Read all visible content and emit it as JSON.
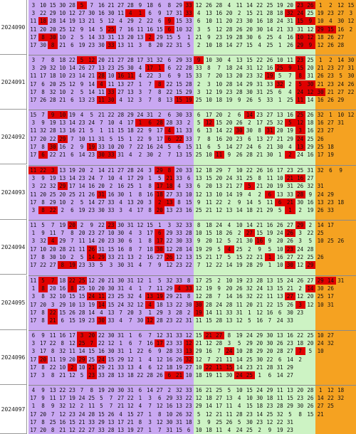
{
  "colors": {
    "purple": "#c9a8f2",
    "green": "#cdf3c4",
    "orange": "#f5a221",
    "hit": "#e00000"
  },
  "groups": [
    {
      "label": "2024090",
      "rows": [
        "3 10 15 30 28 5 7 16 21 27 28 9 18 6 8 29 33 12 26 28 4 11 14 22 25 19 20 23 26 1 2 12 15",
        "3 22 29 10 12 27 30 16 30 11 4 1 6 9 17 31 33 4 13 16 20 2 15 21 28 18 32 24 25 19 23 27 3",
        "11 18 28 14 19 13 21 5 12 4 29 2 22 6 9 15 33 6 10 11 20 23 30 16 18 24 31 15 9 10 4 30 12",
        "11 20 20 25 12 9 14 5 25 7 16 11 16 15 6 10 32 3 5 12 28 26 20 30 14 21 33 31 12 29 15 16 2",
        "17 8 30 10 2 5 14 33 31 13 20 13 2 29 15 5 1 21 9 23 19 28 30 6 25 4 16 10 12 18 26 27",
        "17 30 8 21 6 19 23 30 33 13 11 3 8 20 22 31 5 2 10 18 14 27 15 4 25 1 26 29 9 12 26 28"
      ],
      "hits": [
        [
          5,
          16,
          27,
          28
        ],
        [
          10,
          11,
          16,
          26,
          27
        ],
        [
          1,
          14,
          27,
          28
        ],
        [
          8,
          14,
          29,
          30
        ],
        [
          1,
          2,
          12,
          27,
          28
        ],
        [
          2,
          8,
          27,
          28
        ]
      ]
    },
    {
      "label": "2024091",
      "rows": [
        "3 7 8 18 22 5 12 20 21 27 28 17 31 32 6 29 33 9 10 30 4 13 15 22 26 10 11 23 25 1 2 14 30",
        "3 29 32 10 14 26 27 13 23 25 30 4 17 1 6 22 28 33 8 7 18 24 31 12 16 25 9 15 20 21 23 27 31",
        "11 17 18 10 23 14 21 28 10 16 11 4 22 3 6 9 15 33 7 20 13 20 23 32 19 5 7 8 31 26 23 5 30",
        "17 6 20 25 12 9 14 4 11 13 27 1 7 8 22 15 28 2 3 10 28 14 29 31 33 32 2 5 30 21 23 24 26",
        "17 8 32 10 2 5 14 11 33 27 13 3 7 8 22 15 29 3 12 19 23 28 30 31 25 6 4 24 12 30 21 27 22",
        "17 26 28 21 6 13 23 11 30 4 12 3 7 8 13 15 19 25 10 18 19 9 26 5 33 1 25 11 14 16 26 29"
      ],
      "hits": [
        [
          5,
          6,
          17,
          27
        ],
        [
          12,
          13,
          25,
          26,
          27
        ],
        [
          7,
          9,
          10,
          24,
          27
        ],
        [
          7,
          13,
          25,
          27,
          28
        ],
        [
          8,
          27,
          28,
          29
        ],
        [
          7,
          8,
          15,
          16,
          27
        ]
      ]
    },
    {
      "label": "2024092",
      "rows": [
        "15 7 9 10 19 4 5 21 22 28 29 24 31 2 6 30 33 6 17 20 2 6 14 23 27 13 16 25 26 32 1 10 12",
        "3 9 19 13 14 23 24 7 10 4 17 1 6 28 28 33 2 5 12 15 20 26 2 17 25 32 5 12 18 16 27 31",
        "11 32 28 13 16 21 5 1 11 15 18 22 9 17 4 11 33 6 13 14 22 30 30 8 31 20 19 3 16 23 27",
        "17 20 22 29 7 10 11 31 5 15 1 22 9 17 6 22 33 7 8 16 20 23 6 13 27 21 29 24 25 26",
        "17 8 30 16 2 9 19 33 10 20 7 22 16 24 5 6 15 11 6 5 14 27 24 6 21 30 4 13 29 25 18",
        "17 6 22 21 6 14 23 30 33 31 4 2 30 2 7 13 15 25 10 11 9 26 28 21 30 1 2 24 16 17 19"
      ],
      "hits": [
        [
          2,
          3,
          22,
          27
        ],
        [
          11,
          12,
          13,
          18,
          26,
          27
        ],
        [
          14,
          21,
          24,
          27
        ],
        [
          3,
          14,
          15,
          27
        ],
        [
          2,
          6,
          27
        ],
        [
          1,
          7,
          8,
          19,
          26
        ]
      ]
    },
    {
      "label": "2024093",
      "rows": [
        "11 22 3 13 19 20 2 14 21 27 28 24 3 29 8 20 33 12 18 29 7 10 22 26 16 17 23 25 31 32 6 9",
        "3 9 19 13 14 23 24 7 10 4 17 29 1 5 21 33 6 13 15 20 24 31 25 8 11 10 21 16 27",
        "3 22 32 29 17 14 16 20 2 16 25 1 8 17 18 4 33 6 20 13 21 27 5 21 20 19 31 26 32 31",
        "11 20 25 20 25 21 26 31 16 30 1 8 16 18 27 33 10 12 13 10 14 19 4 2 6 13 33 28 9 24 29",
        "17 8 29 10 2 5 14 27 33 4 13 20 3 2 13 8 15 9 11 22 2 9 14 5 11 6 21 30 16 13 23 18",
        "3 8 22 2 6 19 23 30 33 3 4 17 8 20 13 23 16 25 21 12 13 14 18 21 29 5 1 2 19 26 33"
      ],
      "hits": [
        [
          0,
          1,
          2,
          13,
          14
        ],
        [
          14,
          26,
          27
        ],
        [
          3,
          13,
          14,
          22
        ],
        [
          7,
          13,
          24,
          27
        ],
        [
          13,
          14,
          25,
          26
        ],
        [
          1,
          2,
          13,
          26
        ]
      ]
    },
    {
      "label": "2024094",
      "rows": [
        "11 5 7 19 20 2 9 22 23 30 31 12 15 1 3 32 33 8 18 24 4 10 14 21 16 26 27 29 2 14 17",
        "1 9 11 7 8 20 23 27 10 30 4 3 17 6 29 33 28 10 15 18 26 2 27 15 19 24 26 3 22 25",
        "3 32 4 29 7 11 14 20 23 30 6 1 8 17 22 30 33 9 20 12 5 21 30 16 9 20 26 3 5 10 25 26",
        "17 10 20 28 21 11 26 31 15 16 8 7 18 30 12 28 14 19 29 5 4 25 2 9 5 10 23 24 28",
        "17 8 30 10 2 5 14 29 33 21 13 2 16 27 26 12 13 15 21 17 5 15 22 21 1 16 27 22 25 26",
        "17 22 27 8 19 23 33 5 3 30 31 4 7 9 12 23 22 7 12 22 14 19 28 29 1 10 30 12 29"
      ],
      "hits": [
        [
          4,
          8,
          27
        ],
        [
          13,
          22,
          26
        ],
        [
          2,
          13,
          23
        ],
        [
          6,
          13,
          20,
          26
        ],
        [
          6,
          7,
          14,
          24
        ],
        [
          3,
          4,
          26,
          28
        ]
      ]
    },
    {
      "label": "2024095",
      "rows": [
        "11 5 7 18 22 25 12 20 21 30 31 12 1 5 32 33 8 17 25 2 10 19 23 28 13 15 24 26 27 29 14 31",
        "1 8 20 16 8 25 10 20 30 31 4 1 7 11 29 4 33 12 19 9 20 26 32 24 13 15 21 2 14 30 26",
        "3 8 32 10 15 15 24 11 23 25 32 4 13 19 29 21 8 12 28 7 14 16 32 22 11 13 27 12 20 25 17",
        "17 20 3 29 10 13 19 14 15 24 32 12 4 18 13 22 30 30 28 24 28 11 20 21 22 15 26 3 12 10 31",
        "17 8 22 15 26 28 14 4 13 7 20 3 1 29 3 28 2 19 14 11 33 31 1 12 16 6 30 23",
        "17 8 21 6 15 19 23 30 33 4 7 30 12 28 23 22 31 11 15 28 13 12 5 16 7 24 33"
      ],
      "hits": [
        [
          1,
          2,
          4,
          5,
          29,
          30
        ],
        [
          1,
          4,
          15,
          16,
          28
        ],
        [
          6,
          7,
          12,
          13,
          26
        ],
        [
          7,
          12,
          17,
          27
        ],
        [
          2,
          17,
          28
        ],
        [
          2,
          7,
          12,
          29
        ]
      ]
    },
    {
      "label": "2024096",
      "rows": [
        "6 9 11 16 17 3 20 22 30 31 1 6 7 12 31 33 12 15 21 27 8 19 24 29 30 13 16 22 25 10 27",
        "3 17 22 8 12 25 7 22 12 1 6 7 16 17 23 33 12 21 12 28 3 5 29 20 30 26 23 18 20 24 32",
        "3 17 8 32 11 14 15 16 30 31 1 22 6 9 28 33 13 29 16 7 24 10 28 29 20 28 27 7 5 10",
        "17 20 11 19 20 29 25 24 15 29 12 1 4 12 16 26 32 12 7 21 11 14 25 30 22 6 14 2",
        "17 8 22 10 2 10 21 29 21 33 13 4 6 12 18 19 27 10 22 11 15 14 23 21 28 31 29",
        "17 3 8 21 12 5 23 33 28 13 18 22 28 26 6 21 10 18 19 11 30 24 25 1 6 14 27"
      ],
      "hits": [
        [
          5,
          6,
          18,
          19
        ],
        [
          5,
          6,
          13,
          16
        ],
        [
          16,
          20,
          27
        ],
        [
          1,
          5,
          7,
          16
        ],
        [
          4,
          6,
          18,
          19,
          20
        ],
        [
          6,
          14,
          15,
          21,
          22
        ]
      ]
    },
    {
      "label": "2024097",
      "rows": [
        "4 9 13 22 23 7 8 19 20 30 31 6 14 27 2 32 33 16 21 25 5 10 15 24 29 11 13 20 28 1 12 18",
        "17 9 11 17 19 24 25 5 7 27 22 1 3 6 29 33 22 12 18 27 13 4 10 30 18 11 15 23 26 14 22 32",
        "1 8 9 32 12 2 11 5 7 21 12 4 7 12 16 13 23 29 14 17 11 4 15 18 23 28 29 30 26 27 25",
        "17 20 7 12 23 24 28 15 26 4 15 27 1 8 10 26 32 5 12 21 11 28 23 14 25 32 5 8 15 21",
        "17 8 25 16 15 21 33 29 13 17 21 8 3 12 30 31 18 3 9 25 26 5 30 23 12 22 31",
        "17 20 8 21 12 22 27 33 28 13 19 27 1 7 31 15 6 10 18 11 4 24 25 2 9 19 23"
      ],
      "hits": [
        [],
        [],
        [],
        [],
        [],
        []
      ]
    }
  ]
}
